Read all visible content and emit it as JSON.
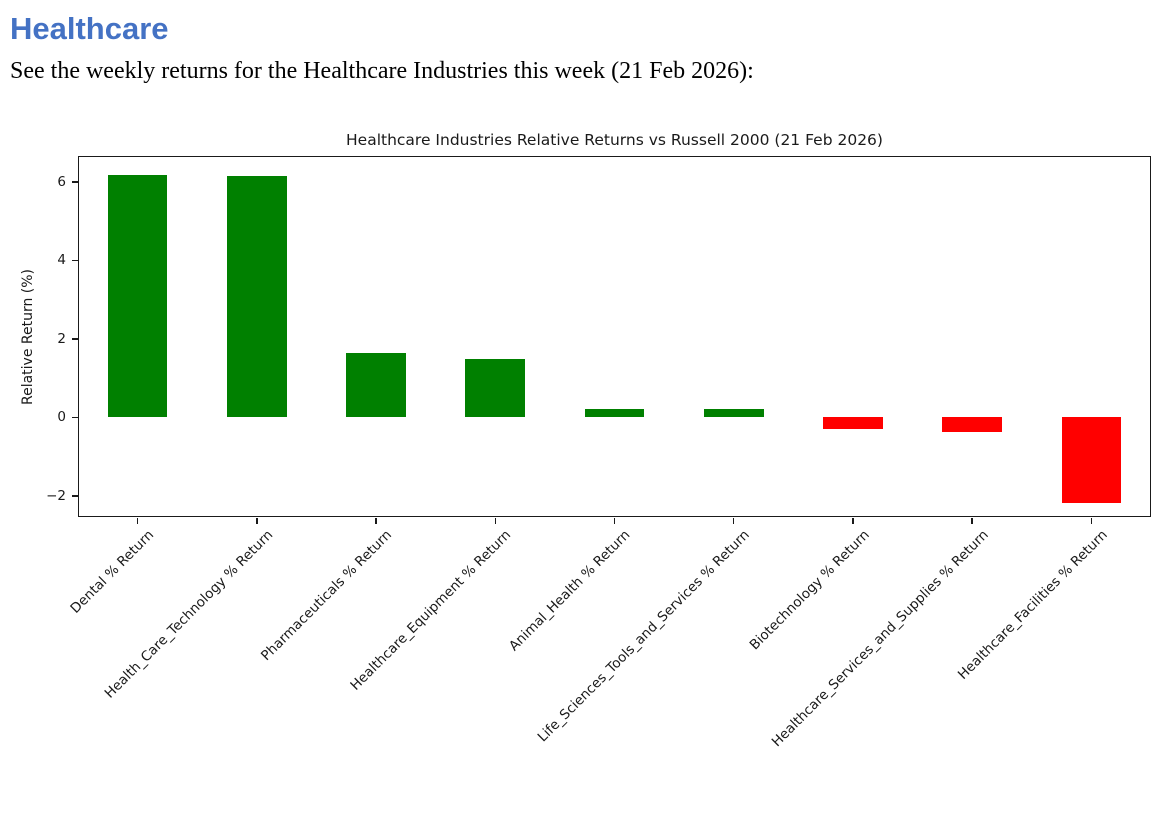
{
  "page": {
    "heading": "Healthcare",
    "description": "See the weekly returns for the Healthcare Industries this week (21 Feb 2026):"
  },
  "colors": {
    "heading_blue": "#4472C4",
    "positive_bar": "#008000",
    "negative_bar": "#ff0000",
    "axis": "#1a1a1a",
    "background": "#ffffff"
  },
  "chart_data": {
    "type": "bar",
    "title": "Healthcare Industries Relative Returns vs Russell 2000 (21 Feb 2026)",
    "xlabel": "",
    "ylabel": "Relative Return (%)",
    "categories": [
      "Dental % Return",
      "Health_Care_Technology % Return",
      "Pharmaceuticals % Return",
      "Healthcare_Equipment % Return",
      "Animal_Health % Return",
      "Life_Sciences_Tools_and_Services % Return",
      "Biotechnology % Return",
      "Healthcare_Services_and_Supplies % Return",
      "Healthcare_Facilities % Return"
    ],
    "values": [
      6.18,
      6.14,
      1.63,
      1.48,
      0.22,
      0.21,
      -0.29,
      -0.37,
      -2.19
    ],
    "ylim": [
      -2.54,
      6.66
    ],
    "yticks": [
      -2,
      0,
      2,
      4,
      6
    ],
    "ytick_labels": [
      "−2",
      "0",
      "2",
      "4",
      "6"
    ],
    "xtick_rotation_deg": 45,
    "bar_width_fraction": 0.5,
    "grid": false,
    "legend": false,
    "positive_color": "#008000",
    "negative_color": "#ff0000"
  }
}
